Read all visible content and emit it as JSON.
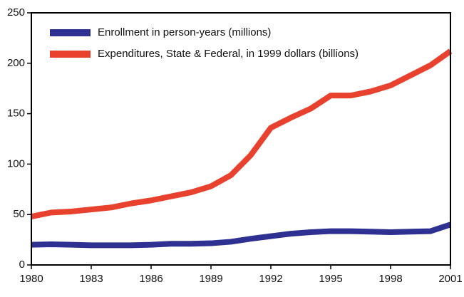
{
  "chart_data": {
    "type": "line",
    "x": [
      1980,
      1981,
      1982,
      1983,
      1984,
      1985,
      1986,
      1987,
      1988,
      1989,
      1990,
      1991,
      1992,
      1993,
      1994,
      1995,
      1996,
      1997,
      1998,
      1999,
      2000,
      2001
    ],
    "series": [
      {
        "name": "Enrollment in person-years (millions)",
        "color": "#2e3192",
        "values": [
          20,
          20.5,
          20,
          19.5,
          19.5,
          19.5,
          20,
          21,
          21,
          21.5,
          23,
          26,
          28.5,
          31,
          32.5,
          33.5,
          33.5,
          33,
          32.5,
          33,
          33.5,
          40
        ]
      },
      {
        "name": "Expenditures, State & Federal, in 1999 dollars (billions)",
        "color": "#e8412e",
        "values": [
          48,
          52,
          53,
          55,
          57,
          61,
          64,
          68,
          72,
          78,
          89,
          109,
          136,
          146,
          155,
          168,
          168,
          172,
          178,
          188,
          198,
          212
        ]
      }
    ],
    "xlim": [
      1980,
      2001
    ],
    "xticks": [
      1980,
      1983,
      1986,
      1989,
      1992,
      1995,
      1998,
      2001
    ],
    "ylim": [
      0,
      250
    ],
    "yticks": [
      0,
      50,
      100,
      150,
      200,
      250
    ],
    "grid": false,
    "legend": "upper left"
  }
}
